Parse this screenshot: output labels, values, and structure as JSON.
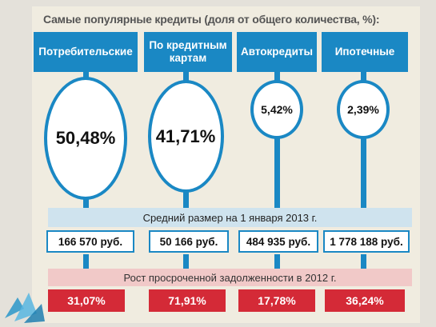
{
  "chart_data": {
    "type": "bubble",
    "title": "Самые популярные кредиты (доля от общего количества, %):",
    "categories": [
      "Потребительские",
      "По кредитным картам",
      "Автокредиты",
      "Ипотечные"
    ],
    "share_labels": [
      "50,48%",
      "41,71%",
      "5,42%",
      "2,39%"
    ],
    "share_values": [
      50.48,
      41.71,
      5.42,
      2.39
    ],
    "avg_size_title": "Средний размер на 1 января 2013 г.",
    "avg_size_labels": [
      "166 570 руб.",
      "50 166 руб.",
      "484 935 руб.",
      "1 778 188 руб."
    ],
    "avg_size_values": [
      166570,
      50166,
      484935,
      1778188
    ],
    "overdue_title": "Рост просроченной задолженности в 2012 г.",
    "overdue_labels": [
      "31,07%",
      "71,91%",
      "17,78%",
      "36,24%"
    ],
    "overdue_values": [
      31.07,
      71.91,
      17.78,
      36.24
    ]
  },
  "colors": {
    "header": "#1a88c4",
    "overdue": "#d42a37",
    "band_blue": "#cfe3ee",
    "band_pink": "#f1c9c8"
  }
}
